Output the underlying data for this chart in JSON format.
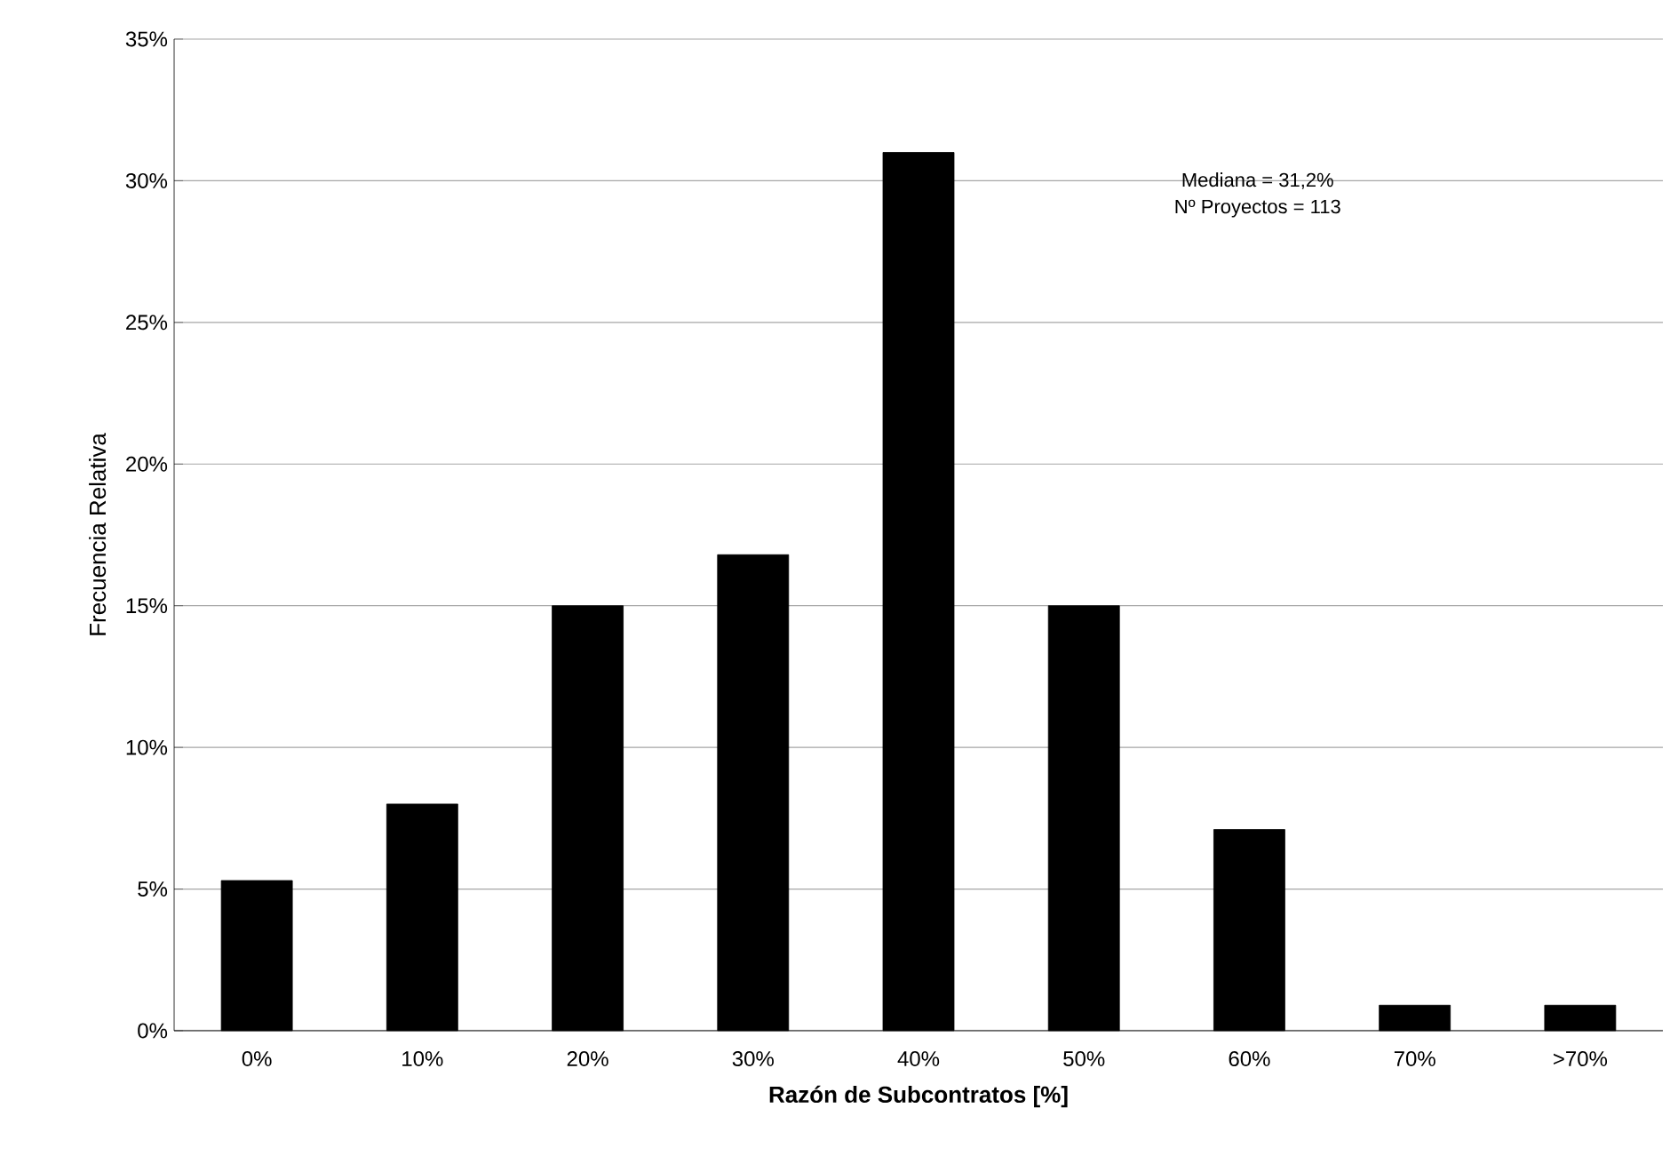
{
  "chart_data": {
    "type": "bar",
    "xlabel": "**Razón de Subcontratos [%]**",
    "ylabel": "Frecuencia Relativa",
    "categories": [
      "0%",
      "10%",
      "20%",
      "30%",
      "40%",
      "50%",
      "60%",
      "70%",
      ">70%"
    ],
    "values": [
      5.3,
      8.0,
      15.0,
      16.8,
      31.0,
      15.0,
      7.1,
      0.9,
      0.9
    ],
    "color": "#000000",
    "ylim": [
      0,
      35
    ],
    "yticks": [
      {
        "value": 0,
        "label": "0%"
      },
      {
        "value": 5,
        "label": "5%"
      },
      {
        "value": 10,
        "label": "10%"
      },
      {
        "value": 15,
        "label": "15%"
      },
      {
        "value": 20,
        "label": "20%"
      },
      {
        "value": 25,
        "label": "25%"
      },
      {
        "value": 30,
        "label": "30%"
      },
      {
        "value": 35,
        "label": "35%"
      }
    ],
    "grid": "y",
    "annotations": [
      "Mediana = 31,2%",
      "Nº Proyectos = 113"
    ]
  }
}
